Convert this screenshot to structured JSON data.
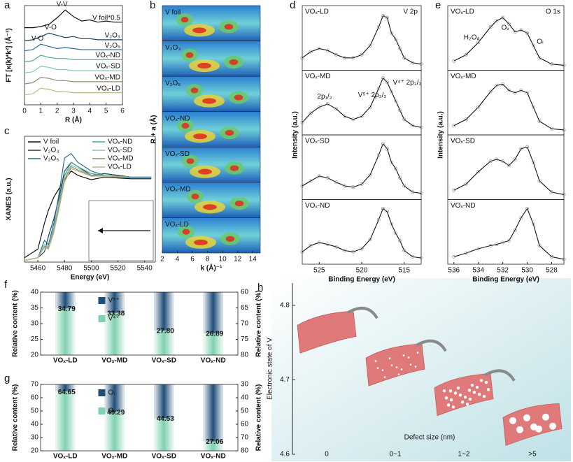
{
  "chart_data": [
    {
      "panel": "a",
      "type": "line",
      "xlabel": "R (Å)",
      "ylabel": "FT [κ(k)*k²] (Å⁻³)",
      "xlim": [
        0,
        6
      ],
      "xticks": [
        0,
        1,
        2,
        3,
        4,
        5,
        6
      ],
      "ylim": [
        0,
        9
      ],
      "x": [
        0,
        0.5,
        1,
        1.5,
        2,
        2.5,
        3,
        3.5,
        4,
        4.5,
        5,
        5.5,
        6
      ],
      "series": [
        {
          "name": "V foil*0.5",
          "color": "#111111",
          "values": [
            7.0,
            7.0,
            7.1,
            7.3,
            7.9,
            8.6,
            8.0,
            7.6,
            7.7,
            7.5,
            7.6,
            7.5,
            7.5
          ]
        },
        {
          "name": "V₂O₃",
          "color": "#1d3f5e",
          "values": [
            5.8,
            5.9,
            6.2,
            6.5,
            6.3,
            6.1,
            6.2,
            6.0,
            6.0,
            5.9,
            5.9,
            5.9,
            5.9
          ]
        },
        {
          "name": "V₂O₅",
          "color": "#2b6e8e",
          "values": [
            4.9,
            5.0,
            5.5,
            5.3,
            5.1,
            5.2,
            5.1,
            5.0,
            5.0,
            5.0,
            5.0,
            5.0,
            5.0
          ]
        },
        {
          "name": "VOₓ-ND",
          "color": "#4fa898",
          "values": [
            3.9,
            4.0,
            4.5,
            4.3,
            4.2,
            4.2,
            4.1,
            4.1,
            4.1,
            4.1,
            4.1,
            4.1,
            4.1
          ]
        },
        {
          "name": "VOₓ-SD",
          "color": "#86c8b6",
          "values": [
            2.9,
            3.0,
            3.5,
            3.4,
            3.2,
            3.2,
            3.1,
            3.1,
            3.1,
            3.1,
            3.1,
            3.1,
            3.1
          ]
        },
        {
          "name": "VOₓ-MD",
          "color": "#9c8c6a",
          "values": [
            1.9,
            2.0,
            2.5,
            2.4,
            2.2,
            2.2,
            2.1,
            2.1,
            2.1,
            2.1,
            2.1,
            2.1,
            2.1
          ]
        },
        {
          "name": "VOₓ-LD",
          "color": "#c4b58c",
          "values": [
            0.9,
            1.0,
            1.5,
            1.4,
            1.2,
            1.2,
            1.1,
            1.1,
            1.1,
            1.1,
            1.1,
            1.1,
            1.1
          ]
        }
      ],
      "annotations": [
        "V-V",
        "V-O",
        "V-O"
      ]
    },
    {
      "panel": "b",
      "type": "wavelet",
      "xlabel": "k (Å)⁻¹",
      "ylabel": "R + a (Å)",
      "xlim": [
        2,
        15
      ],
      "xticks": [
        2,
        4,
        6,
        8,
        10,
        12,
        14
      ],
      "strips": [
        "V foil",
        "V₂O₃",
        "V₂O₅",
        "VOₓ-ND",
        "VOₓ-SD",
        "VOₓ-MD",
        "VOₓ-LD"
      ]
    },
    {
      "panel": "c",
      "type": "line",
      "xlabel": "Energy (eV)",
      "ylabel": "XANES (a.u.)",
      "xlim": [
        5450,
        5548
      ],
      "xticks": [
        5460,
        5480,
        5500,
        5520,
        5540
      ],
      "ylim": [
        0,
        1.45
      ],
      "legend": "upper right",
      "x": [
        5450,
        5460,
        5465,
        5468,
        5472,
        5476,
        5480,
        5485,
        5490,
        5500,
        5510,
        5520,
        5530,
        5545
      ],
      "series": [
        {
          "name": "V foil",
          "color": "#111111",
          "values": [
            0.05,
            0.15,
            0.45,
            0.6,
            0.75,
            0.85,
            0.95,
            1.05,
            1.0,
            0.95,
            0.98,
            0.97,
            0.96,
            0.96
          ]
        },
        {
          "name": "V₂O₃",
          "color": "#1d3f5e",
          "values": [
            0.02,
            0.05,
            0.12,
            0.3,
            0.5,
            0.75,
            1.05,
            1.15,
            1.1,
            1.0,
            1.02,
            1.0,
            0.98,
            0.98
          ]
        },
        {
          "name": "V₂O₅",
          "color": "#2b6e8e",
          "values": [
            0.02,
            0.05,
            0.25,
            0.2,
            0.45,
            0.8,
            1.2,
            1.25,
            1.15,
            1.05,
            1.0,
            0.98,
            0.97,
            0.97
          ]
        },
        {
          "name": "VOₓ-ND",
          "color": "#4fa898",
          "values": [
            0.02,
            0.05,
            0.2,
            0.18,
            0.4,
            0.7,
            1.0,
            1.15,
            1.1,
            1.02,
            1.0,
            0.99,
            0.98,
            0.98
          ]
        },
        {
          "name": "VOₓ-SD",
          "color": "#86c8b6",
          "values": [
            0.02,
            0.05,
            0.2,
            0.17,
            0.38,
            0.68,
            0.98,
            1.12,
            1.08,
            1.0,
            1.0,
            0.99,
            0.98,
            0.98
          ]
        },
        {
          "name": "VOₓ-MD",
          "color": "#9c8c6a",
          "values": [
            0.02,
            0.05,
            0.18,
            0.16,
            0.36,
            0.65,
            0.95,
            1.1,
            1.06,
            1.0,
            0.99,
            0.99,
            0.98,
            0.98
          ]
        },
        {
          "name": "VOₓ-LD",
          "color": "#c4b58c",
          "values": [
            0.02,
            0.05,
            0.17,
            0.15,
            0.34,
            0.62,
            0.92,
            1.08,
            1.05,
            0.99,
            0.99,
            0.98,
            0.98,
            0.98
          ]
        }
      ]
    },
    {
      "panel": "d",
      "type": "spectra",
      "title": "V 2p",
      "xlabel": "Binding Energy (eV)",
      "ylabel": "Intensity (a.u.)",
      "xlim": [
        527,
        513
      ],
      "xticks": [
        525,
        520,
        515
      ],
      "ylim": [
        0,
        1
      ],
      "x": [
        527,
        526,
        525,
        524,
        523,
        522,
        521,
        520,
        519,
        518,
        517.5,
        517,
        516.5,
        516,
        515.5,
        515,
        514,
        513
      ],
      "series": [
        {
          "name": "VOₓ-LD",
          "values": [
            0.2,
            0.3,
            0.35,
            0.32,
            0.25,
            0.2,
            0.2,
            0.25,
            0.4,
            0.7,
            0.88,
            0.85,
            0.6,
            0.5,
            0.35,
            0.2,
            0.12,
            0.1
          ]
        },
        {
          "name": "VOₓ-MD",
          "values": [
            0.2,
            0.35,
            0.45,
            0.5,
            0.42,
            0.3,
            0.25,
            0.3,
            0.45,
            0.75,
            0.92,
            0.85,
            0.7,
            0.55,
            0.4,
            0.25,
            0.15,
            0.12
          ]
        },
        {
          "name": "VOₓ-SD",
          "values": [
            0.22,
            0.3,
            0.38,
            0.35,
            0.28,
            0.22,
            0.2,
            0.25,
            0.4,
            0.72,
            0.9,
            0.82,
            0.6,
            0.5,
            0.35,
            0.22,
            0.12,
            0.1
          ]
        },
        {
          "name": "VOₓ-ND",
          "values": [
            0.2,
            0.3,
            0.35,
            0.32,
            0.28,
            0.22,
            0.2,
            0.25,
            0.4,
            0.72,
            0.9,
            0.85,
            0.65,
            0.5,
            0.38,
            0.22,
            0.12,
            0.1
          ]
        }
      ],
      "annotations": [
        "2p₁/₂",
        "V⁵⁺ 2p₃/₂",
        "V⁴⁺ 2p₃/₂"
      ]
    },
    {
      "panel": "e",
      "type": "spectra",
      "title": "O 1s",
      "xlabel": "Binding Energy (eV)",
      "ylabel": "Intensity (a.u.)",
      "xlim": [
        536.5,
        527
      ],
      "xticks": [
        536,
        534,
        532,
        530,
        528
      ],
      "ylim": [
        0,
        1
      ],
      "x": [
        536,
        535,
        534,
        533,
        532.5,
        532,
        531.5,
        531,
        530.5,
        530,
        529.5,
        529,
        528,
        527
      ],
      "series": [
        {
          "name": "VOₓ-LD",
          "values": [
            0.15,
            0.25,
            0.45,
            0.7,
            0.8,
            0.85,
            0.75,
            0.62,
            0.65,
            0.6,
            0.4,
            0.2,
            0.1,
            0.08
          ]
        },
        {
          "name": "VOₓ-MD",
          "values": [
            0.15,
            0.25,
            0.45,
            0.7,
            0.8,
            0.82,
            0.72,
            0.68,
            0.72,
            0.68,
            0.45,
            0.22,
            0.1,
            0.08
          ]
        },
        {
          "name": "VOₓ-SD",
          "values": [
            0.15,
            0.25,
            0.45,
            0.62,
            0.65,
            0.62,
            0.55,
            0.65,
            0.82,
            0.85,
            0.6,
            0.3,
            0.12,
            0.08
          ]
        },
        {
          "name": "VOₓ-ND",
          "values": [
            0.12,
            0.18,
            0.25,
            0.3,
            0.32,
            0.35,
            0.38,
            0.55,
            0.75,
            0.9,
            0.65,
            0.3,
            0.12,
            0.08
          ]
        }
      ],
      "annotations": [
        "H₂Oₐ",
        "Oᵥ",
        "Oₗ"
      ]
    },
    {
      "panel": "f",
      "type": "bar",
      "ylabel": "Relative content (%)",
      "y2label": "Relative content (%)",
      "categories": [
        "VOₓ-LD",
        "VOₓ-MD",
        "VOₓ-SD",
        "VOₓ-ND"
      ],
      "values": [
        34.79,
        33.38,
        27.8,
        26.89
      ],
      "value_labels": [
        "34.79",
        "33.38",
        "27.80",
        "26.89"
      ],
      "ylim": [
        20,
        40
      ],
      "yticks": [
        20,
        25,
        30,
        35,
        40
      ],
      "y2lim": [
        60,
        80
      ],
      "y2ticks": [
        60,
        65,
        70,
        75,
        80
      ],
      "y2_inverted": true,
      "legend": [
        {
          "name": "V⁵⁺",
          "color": "#1f4e79"
        },
        {
          "name": "V⁴⁺",
          "color": "#7fd1b0"
        }
      ]
    },
    {
      "panel": "g",
      "type": "bar",
      "ylabel": "Relative content (%)",
      "y2label": "Relative content (%)",
      "categories": [
        "VOₓ-LD",
        "VOₓ-MD",
        "VOₓ-SD",
        "VOₓ-ND"
      ],
      "values": [
        64.65,
        49.29,
        44.53,
        27.06
      ],
      "value_labels": [
        "64.65",
        "49.29",
        "44.53",
        "27.06"
      ],
      "ylim": [
        20,
        70
      ],
      "yticks": [
        20,
        30,
        40,
        50,
        60,
        70
      ],
      "y2lim": [
        30,
        80
      ],
      "y2ticks": [
        30,
        40,
        50,
        60,
        70,
        80
      ],
      "y2_inverted": true,
      "legend": [
        {
          "name": "Oₗ",
          "color": "#1f4e79"
        },
        {
          "name": "Oᵥ",
          "color": "#7fd1b0"
        }
      ]
    },
    {
      "panel": "h",
      "type": "scatter",
      "xlabel": "Defect size (nm)",
      "ylabel": "Electronic state of V",
      "categories": [
        "0",
        "0~1",
        "1~2",
        ">5"
      ],
      "values": [
        4.764,
        4.72,
        4.68,
        4.64
      ],
      "color": "#e07a7a",
      "ylim": [
        4.6,
        4.83
      ],
      "yticks": [
        4.6,
        4.7,
        4.8
      ]
    }
  ]
}
